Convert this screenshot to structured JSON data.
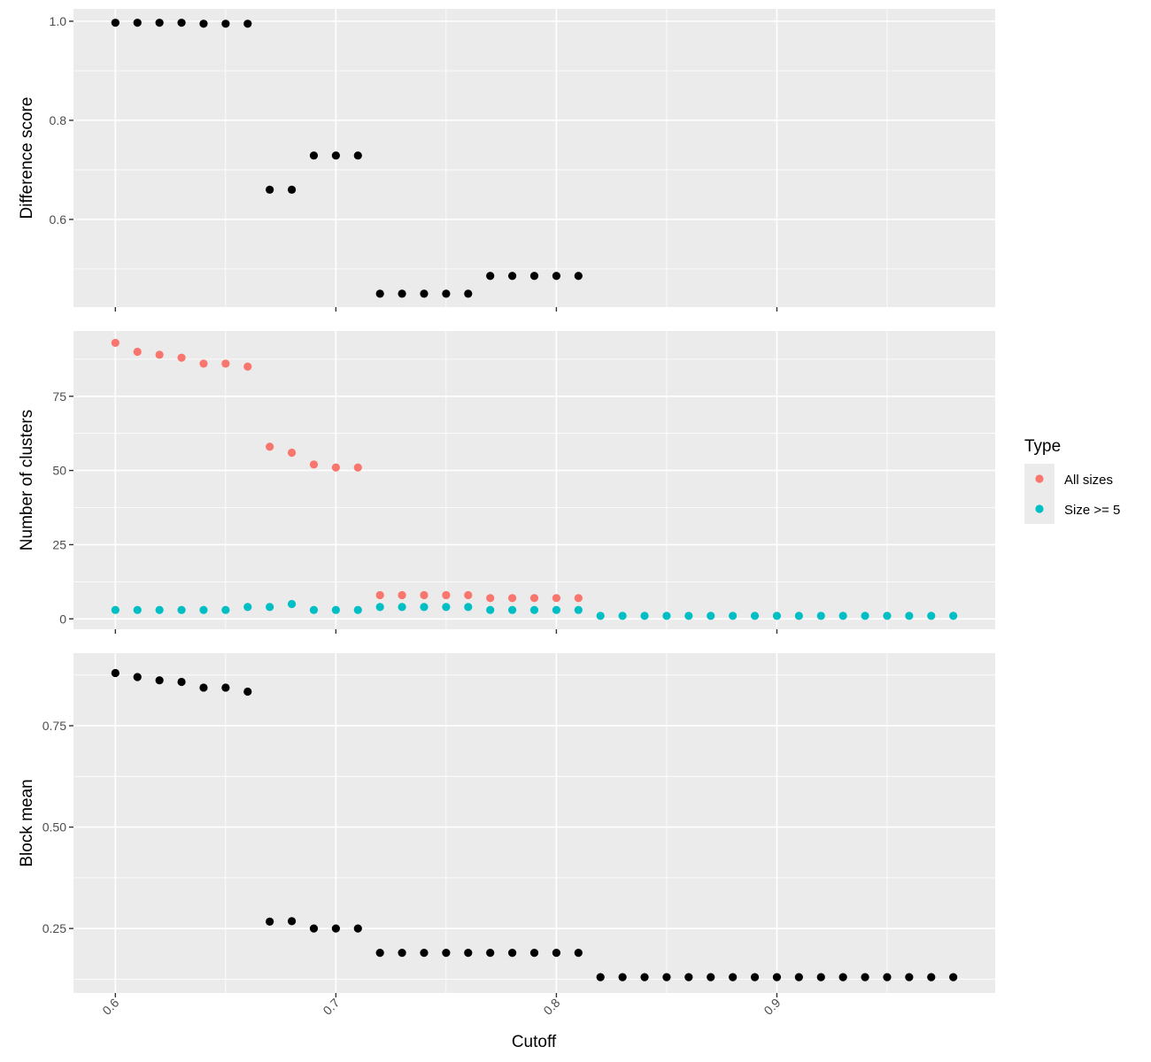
{
  "chart_data": [
    {
      "type": "scatter",
      "title": "",
      "xlabel": "",
      "ylabel": "Difference score",
      "xlim": [
        0.581,
        0.999
      ],
      "ylim": [
        0.423,
        1.025
      ],
      "xticks": [
        0.6,
        0.7,
        0.8,
        0.9
      ],
      "yticks": [
        0.6,
        0.8,
        1.0
      ],
      "ytick_labels": [
        "0.6",
        "0.8",
        "1.0"
      ],
      "grid": true,
      "series": [
        {
          "color": "#000000",
          "x": [
            0.6,
            0.61,
            0.62,
            0.63,
            0.64,
            0.65,
            0.66,
            0.67,
            0.68,
            0.69,
            0.7,
            0.71,
            0.72,
            0.73,
            0.74,
            0.75,
            0.76,
            0.77,
            0.78,
            0.79,
            0.8,
            0.81
          ],
          "y": [
            0.997,
            0.997,
            0.997,
            0.997,
            0.995,
            0.995,
            0.995,
            0.66,
            0.66,
            0.729,
            0.729,
            0.729,
            0.45,
            0.45,
            0.45,
            0.45,
            0.45,
            0.486,
            0.486,
            0.486,
            0.486,
            0.486
          ]
        }
      ]
    },
    {
      "type": "scatter",
      "title": "",
      "xlabel": "",
      "ylabel": "Number of clusters",
      "xlim": [
        0.581,
        0.999
      ],
      "ylim": [
        -3.5,
        97
      ],
      "xticks": [
        0.6,
        0.7,
        0.8,
        0.9
      ],
      "yticks": [
        0,
        25,
        50,
        75
      ],
      "ytick_labels": [
        "0",
        "25",
        "50",
        "75"
      ],
      "grid": true,
      "legend": {
        "title": "Type",
        "position": "right"
      },
      "series": [
        {
          "name": "All sizes",
          "color": "#F8766D",
          "x": [
            0.6,
            0.61,
            0.62,
            0.63,
            0.64,
            0.65,
            0.66,
            0.67,
            0.68,
            0.69,
            0.7,
            0.71,
            0.72,
            0.73,
            0.74,
            0.75,
            0.76,
            0.77,
            0.78,
            0.79,
            0.8,
            0.81
          ],
          "y": [
            93,
            90,
            89,
            88,
            86,
            86,
            85,
            58,
            56,
            52,
            51,
            51,
            8,
            8,
            8,
            8,
            8,
            7,
            7,
            7,
            7,
            7
          ]
        },
        {
          "name": "Size >= 5",
          "color": "#00BFC4",
          "x": [
            0.6,
            0.61,
            0.62,
            0.63,
            0.64,
            0.65,
            0.66,
            0.67,
            0.68,
            0.69,
            0.7,
            0.71,
            0.72,
            0.73,
            0.74,
            0.75,
            0.76,
            0.77,
            0.78,
            0.79,
            0.8,
            0.81,
            0.82,
            0.83,
            0.84,
            0.85,
            0.86,
            0.87,
            0.88,
            0.89,
            0.9,
            0.91,
            0.92,
            0.93,
            0.94,
            0.95,
            0.96,
            0.97,
            0.98
          ],
          "y": [
            3,
            3,
            3,
            3,
            3,
            3,
            4,
            4,
            5,
            3,
            3,
            3,
            4,
            4,
            4,
            4,
            4,
            3,
            3,
            3,
            3,
            3,
            1,
            1,
            1,
            1,
            1,
            1,
            1,
            1,
            1,
            1,
            1,
            1,
            1,
            1,
            1,
            1,
            1
          ]
        }
      ]
    },
    {
      "type": "scatter",
      "title": "",
      "xlabel": "Cutoff",
      "ylabel": "Block mean",
      "xlim": [
        0.581,
        0.999
      ],
      "ylim": [
        0.091,
        0.929
      ],
      "xticks": [
        0.6,
        0.7,
        0.8,
        0.9
      ],
      "xtick_labels": [
        "0.6",
        "0.7",
        "0.8",
        "0.9"
      ],
      "yticks": [
        0.25,
        0.5,
        0.75
      ],
      "ytick_labels": [
        "0.25",
        "0.50",
        "0.75"
      ],
      "grid": true,
      "series": [
        {
          "color": "#000000",
          "x": [
            0.6,
            0.61,
            0.62,
            0.63,
            0.64,
            0.65,
            0.66,
            0.67,
            0.68,
            0.69,
            0.7,
            0.71,
            0.72,
            0.73,
            0.74,
            0.75,
            0.76,
            0.77,
            0.78,
            0.79,
            0.8,
            0.81,
            0.82,
            0.83,
            0.84,
            0.85,
            0.86,
            0.87,
            0.88,
            0.89,
            0.9,
            0.91,
            0.92,
            0.93,
            0.94,
            0.95,
            0.96,
            0.97,
            0.98
          ],
          "y": [
            0.88,
            0.87,
            0.862,
            0.858,
            0.844,
            0.844,
            0.834,
            0.267,
            0.268,
            0.25,
            0.25,
            0.25,
            0.19,
            0.19,
            0.19,
            0.19,
            0.19,
            0.19,
            0.19,
            0.19,
            0.19,
            0.19,
            0.13,
            0.13,
            0.13,
            0.13,
            0.13,
            0.13,
            0.13,
            0.13,
            0.13,
            0.13,
            0.13,
            0.13,
            0.13,
            0.13,
            0.13,
            0.13,
            0.13
          ]
        }
      ]
    }
  ]
}
